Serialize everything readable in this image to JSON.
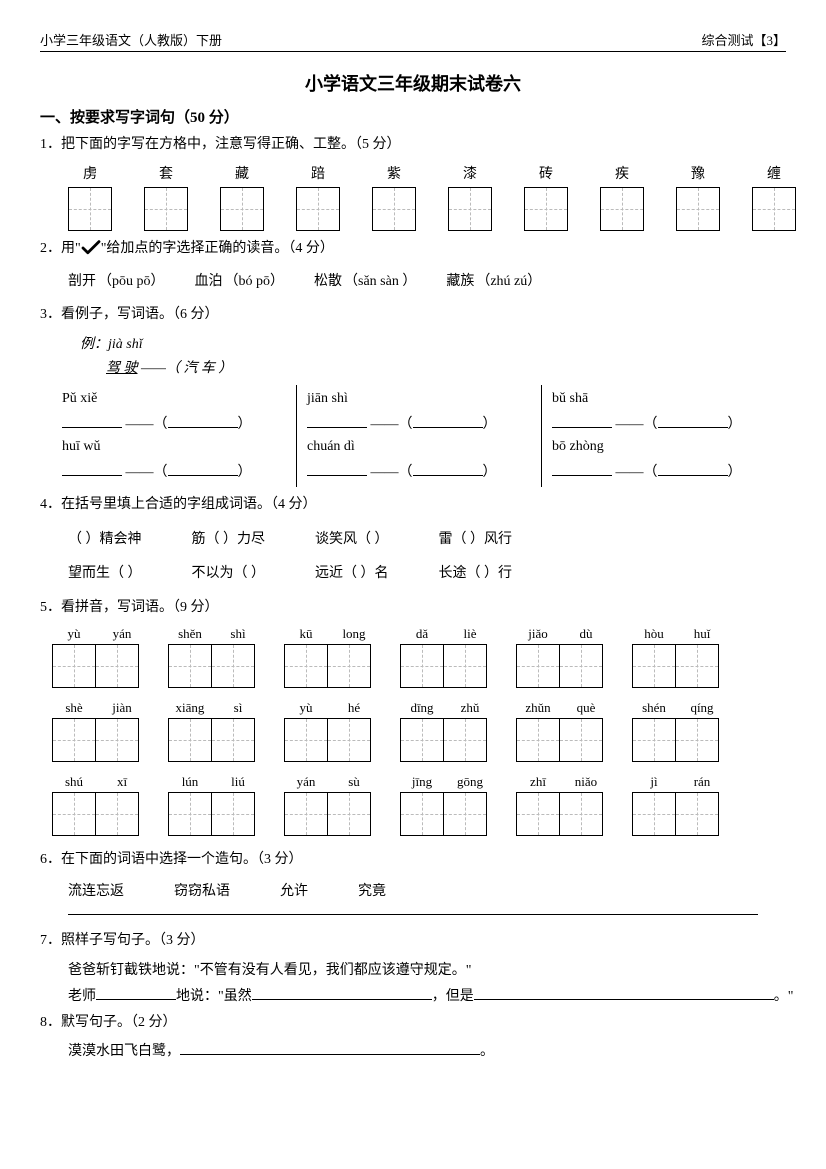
{
  "header": {
    "left": "小学三年级语文（人教版）下册",
    "right_prefix": "综合测试【",
    "right_num": "3",
    "right_suffix": "】"
  },
  "title": "小学语文三年级期末试卷六",
  "section1": {
    "heading": "一、按要求写字词句（50 分）",
    "q1": {
      "text": "1．把下面的字写在方格中，注意写得正确、工整。（5 分）",
      "chars": [
        "虏",
        "套",
        "藏",
        "踣",
        "紫",
        "漆",
        "砖",
        "疾",
        "豫",
        "缠"
      ]
    },
    "q2": {
      "text_pre": "2．用\"",
      "text_post": "\"给加点的字选择正确的读音。（4 分）",
      "items": [
        {
          "word": "剖开",
          "dot": "剖",
          "pinyin": "（pōu  pō）"
        },
        {
          "word": "血泊",
          "dot": "泊",
          "pinyin": "（bó  pō）"
        },
        {
          "word": "松散",
          "dot": "散",
          "pinyin": "（sǎn  sàn ）"
        },
        {
          "word": "藏族",
          "dot": "藏",
          "pinyin": "（zhú  zú）"
        }
      ]
    },
    "q3": {
      "text": "3．看例子，写词语。（6 分）",
      "example_pinyin": "例：jià  shǐ",
      "example_word": "驾  驶",
      "example_fill": " ——（  汽  车  ）",
      "cols": [
        [
          {
            "py": "Pǔ   xiě"
          },
          {
            "py": "huī   wǔ"
          }
        ],
        [
          {
            "py": "jiān   shì"
          },
          {
            "py": "chuán   dì"
          }
        ],
        [
          {
            "py": "bǔ   shā"
          },
          {
            "py": "bō   zhòng"
          }
        ]
      ]
    },
    "q4": {
      "text": "4．在括号里填上合适的字组成词语。（4 分）",
      "row1": [
        "（   ）精会神",
        "筋（   ）力尽",
        "谈笑风（   ）",
        "雷（   ）风行"
      ],
      "row2": [
        "望而生（   ）",
        "不以为（   ）",
        "远近（   ）名",
        "长途（   ）行"
      ]
    },
    "q5": {
      "text": "5．看拼音，写词语。（9 分）",
      "rows": [
        [
          [
            "yù",
            "yán"
          ],
          [
            "shěn",
            "shì"
          ],
          [
            "kū",
            "long"
          ],
          [
            "dǎ",
            "liè"
          ],
          [
            "jiǎo",
            "dù"
          ],
          [
            "hòu",
            "huǐ"
          ]
        ],
        [
          [
            "shè",
            "jiàn"
          ],
          [
            "xiāng",
            "sì"
          ],
          [
            "yù",
            "hé"
          ],
          [
            "dīng",
            "zhǔ"
          ],
          [
            "zhǔn",
            "què"
          ],
          [
            "shén",
            "qíng"
          ]
        ],
        [
          [
            "shú",
            "xī"
          ],
          [
            "lún",
            "liú"
          ],
          [
            "yán",
            "sù"
          ],
          [
            "jīng",
            "gōng"
          ],
          [
            "zhī",
            "niǎo"
          ],
          [
            "jì",
            "rán"
          ]
        ]
      ]
    },
    "q6": {
      "text": "6．在下面的词语中选择一个造句。（3 分）",
      "words": [
        "流连忘返",
        "窃窃私语",
        "允许",
        "究竟"
      ]
    },
    "q7": {
      "text": "7．照样子写句子。（3 分）",
      "example": "爸爸斩钉截铁地说：\"不管有没有人看见，我们都应该遵守规定。\"",
      "fill_pre": "老师",
      "fill_mid1": "地说：\"虽然",
      "fill_mid2": "，但是",
      "fill_end": "。\""
    },
    "q8": {
      "text": "8．默写句子。（2 分）",
      "line": "漠漠水田飞白鹭，",
      "tail": "。"
    }
  },
  "style": {
    "box_border": "#000000",
    "dash_color": "#bbbbbb",
    "font_size_body": 14,
    "font_size_title": 18
  }
}
